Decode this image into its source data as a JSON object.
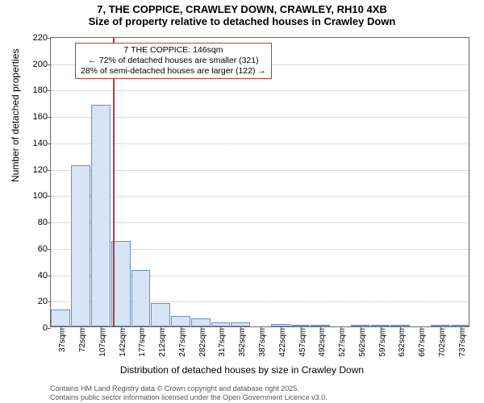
{
  "title": {
    "line1": "7, THE COPPICE, CRAWLEY DOWN, CRAWLEY, RH10 4XB",
    "line2": "Size of property relative to detached houses in Crawley Down"
  },
  "chart": {
    "type": "histogram",
    "ylabel": "Number of detached properties",
    "xlabel": "Distribution of detached houses by size in Crawley Down",
    "ylim": [
      0,
      220
    ],
    "ytick_step": 20,
    "yticks": [
      0,
      20,
      40,
      60,
      80,
      100,
      120,
      140,
      160,
      180,
      200,
      220
    ],
    "xtick_labels": [
      "37sqm",
      "72sqm",
      "107sqm",
      "142sqm",
      "177sqm",
      "212sqm",
      "247sqm",
      "282sqm",
      "317sqm",
      "352sqm",
      "387sqm",
      "422sqm",
      "457sqm",
      "492sqm",
      "527sqm",
      "562sqm",
      "597sqm",
      "632sqm",
      "667sqm",
      "702sqm",
      "737sqm"
    ],
    "values": [
      13,
      122,
      168,
      65,
      43,
      18,
      8,
      6,
      3,
      3,
      0,
      2,
      1,
      1,
      0,
      1,
      1,
      1,
      0,
      1,
      1
    ],
    "bar_fill": "#d6e4f5",
    "bar_border": "#6a8fc7",
    "grid_color": "#bbbbbb",
    "axis_color": "#666666",
    "background_color": "#ffffff",
    "bar_width_ratio": 0.96,
    "marker": {
      "color": "#cc3333",
      "between_index": 3,
      "header": "7 THE COPPICE: 146sqm",
      "line_left": "← 72% of detached houses are smaller (321)",
      "line_right": "28% of semi-detached houses are larger (122) →"
    }
  },
  "footer": {
    "line1": "Contains HM Land Registry data © Crown copyright and database right 2025.",
    "line2": "Contains public sector information licensed under the Open Government Licence v3.0."
  }
}
